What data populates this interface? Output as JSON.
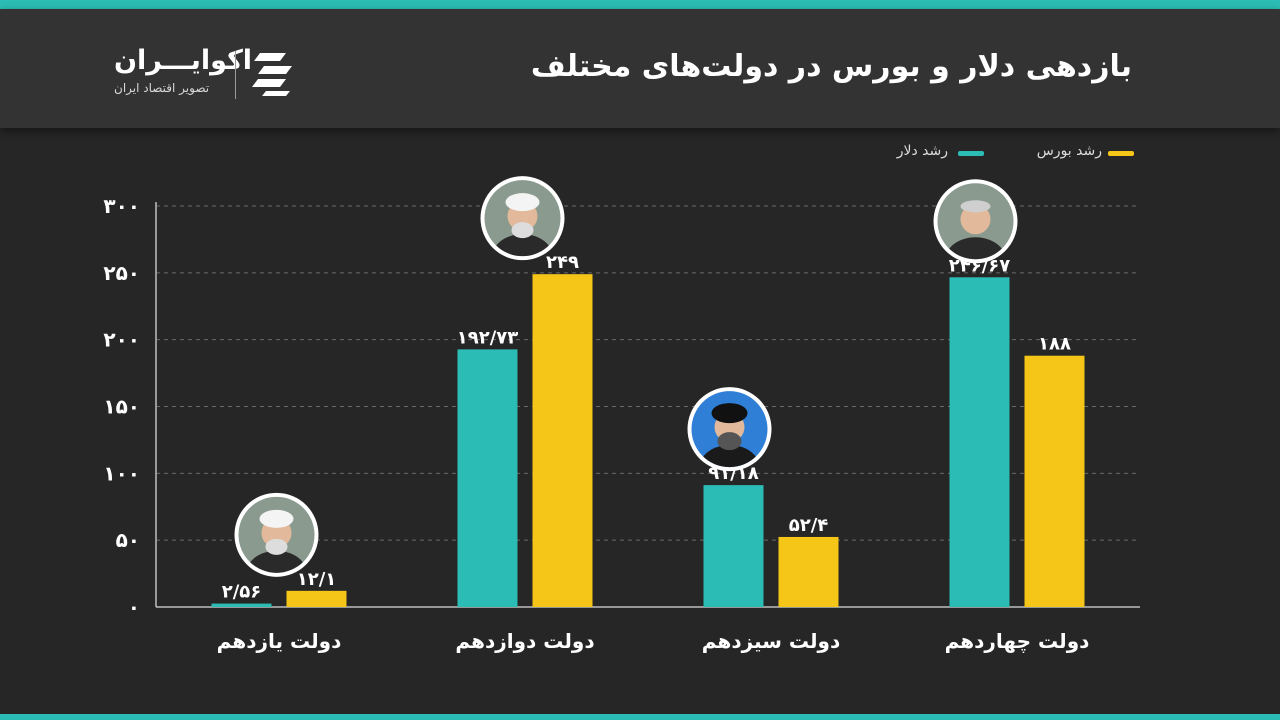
{
  "header": {
    "title": "بازدهی دلار و بورس در دولت‌های مختلف",
    "logo_name": "اکوایـــران",
    "logo_tagline": "تصویر اقتصاد ایران"
  },
  "colors": {
    "dollar": "#2bbdb5",
    "bourse": "#f5c518",
    "background": "#262626",
    "header": "#333333",
    "grid": "#6a6a6a"
  },
  "chart_data": {
    "type": "bar",
    "categories": [
      "دولت یازدهم",
      "دولت دوازدهم",
      "دولت سیزدهم",
      "دولت چهاردهم"
    ],
    "series": [
      {
        "name": "رشد دلار",
        "values": [
          2.56,
          192.73,
          91.18,
          246.67
        ],
        "labels": [
          "۲/۵۶",
          "۱۹۲/۷۳",
          "۹۱/۱۸",
          "۲۴۶/۶۷"
        ]
      },
      {
        "name": "رشد بورس",
        "values": [
          12.1,
          249,
          52.4,
          188
        ],
        "labels": [
          "۱۲/۱",
          "۲۴۹",
          "۵۲/۴",
          "۱۸۸"
        ]
      }
    ],
    "ylim": [
      0,
      300
    ],
    "yticks": [
      0,
      50,
      100,
      150,
      200,
      250,
      300
    ],
    "ytick_labels": [
      "۰",
      "۵۰",
      "۱۰۰",
      "۱۵۰",
      "۲۰۰",
      "۲۵۰",
      "۳۰۰"
    ],
    "grid": true,
    "legend_position": "top-right"
  },
  "portraits": [
    {
      "category": "دولت یازدهم",
      "icon": "portrait-icon"
    },
    {
      "category": "دولت دوازدهم",
      "icon": "portrait-icon"
    },
    {
      "category": "دولت سیزدهم",
      "icon": "portrait-turban-icon"
    },
    {
      "category": "دولت چهاردهم",
      "icon": "portrait-icon"
    }
  ]
}
